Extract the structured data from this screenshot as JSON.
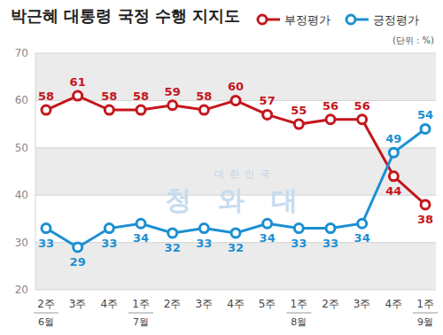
{
  "chart_data": {
    "type": "line",
    "title": "박근혜 대통령 국정 수행 지지도",
    "subtitle": "(단위 : %)",
    "annotations": [
      "대한민국",
      "청와대"
    ],
    "categories": [
      "2주\n6월",
      "3주",
      "4주",
      "1주\n7월",
      "2주",
      "3주",
      "4주",
      "5주",
      "1주\n8월",
      "2주",
      "3주",
      "4주",
      "1주\n9월"
    ],
    "series": [
      {
        "name": "부정평가",
        "color": "#c4161c",
        "marker": "circle",
        "line_style": "solid",
        "values": [
          58,
          61,
          58,
          58,
          59,
          58,
          60,
          57,
          55,
          56,
          56,
          44,
          38
        ]
      },
      {
        "name": "긍정평가",
        "color": "#1b8fd2",
        "marker": "circle",
        "line_style": "solid",
        "values": [
          33,
          29,
          33,
          34,
          32,
          33,
          32,
          34,
          33,
          33,
          34,
          49,
          54
        ]
      }
    ],
    "ylim": [
      20,
      70
    ],
    "yticks": [
      20,
      30,
      40,
      50,
      60,
      70
    ],
    "grid": true,
    "legend": "top-right",
    "data_labels": true
  }
}
